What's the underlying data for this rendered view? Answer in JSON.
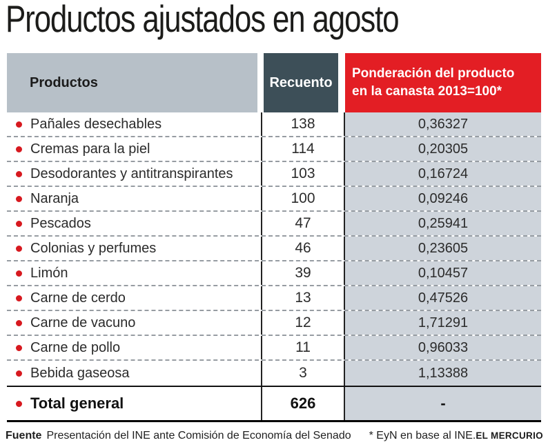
{
  "title": "Productos ajustados en agosto",
  "table": {
    "headers": {
      "products": "Productos",
      "count": "Recuento",
      "weight": "Ponderación del producto\nen la canasta 2013=100*"
    },
    "rows": [
      {
        "product": "Pañales desechables",
        "count": "138",
        "weight": "0,36327"
      },
      {
        "product": "Cremas para la piel",
        "count": "114",
        "weight": "0,20305"
      },
      {
        "product": "Desodorantes y antitranspirantes",
        "count": "103",
        "weight": "0,16724"
      },
      {
        "product": "Naranja",
        "count": "100",
        "weight": "0,09246"
      },
      {
        "product": "Pescados",
        "count": "47",
        "weight": "0,25941"
      },
      {
        "product": "Colonias y perfumes",
        "count": "46",
        "weight": "0,23605"
      },
      {
        "product": "Limón",
        "count": "39",
        "weight": "0,10457"
      },
      {
        "product": "Carne de cerdo",
        "count": "13",
        "weight": "0,47526"
      },
      {
        "product": "Carne de vacuno",
        "count": "12",
        "weight": "1,71291"
      },
      {
        "product": "Carne de pollo",
        "count": "11",
        "weight": "0,96033"
      },
      {
        "product": "Bebida gaseosa",
        "count": "3",
        "weight": "1,13388"
      }
    ],
    "total": {
      "product": "Total general",
      "count": "626",
      "weight": "-"
    }
  },
  "footer": {
    "source_label": "Fuente",
    "source_text": "Presentación del INE ante Comisión de Economía del Senado",
    "note": "* EyN en base al INE.",
    "credit": "EL MERCURIO"
  },
  "colors": {
    "header_products_bg": "#b7c0c8",
    "header_count_bg": "#3d4f58",
    "header_weight_bg": "#e31e24",
    "weight_column_bg": "#ced4db",
    "bullet": "#d7191f",
    "text": "#2b2b2b"
  },
  "chart_data": {
    "type": "table",
    "title": "Productos ajustados en agosto",
    "columns": [
      "Productos",
      "Recuento",
      "Ponderación del producto en la canasta 2013=100*"
    ],
    "rows": [
      [
        "Pañales desechables",
        138,
        "0,36327"
      ],
      [
        "Cremas para la piel",
        114,
        "0,20305"
      ],
      [
        "Desodorantes y antitranspirantes",
        103,
        "0,16724"
      ],
      [
        "Naranja",
        100,
        "0,09246"
      ],
      [
        "Pescados",
        47,
        "0,25941"
      ],
      [
        "Colonias y perfumes",
        46,
        "0,23605"
      ],
      [
        "Limón",
        39,
        "0,10457"
      ],
      [
        "Carne de cerdo",
        13,
        "0,47526"
      ],
      [
        "Carne de vacuno",
        12,
        "1,71291"
      ],
      [
        "Carne de pollo",
        11,
        "0,96033"
      ],
      [
        "Bebida gaseosa",
        3,
        "1,13388"
      ],
      [
        "Total general",
        626,
        "-"
      ]
    ]
  }
}
